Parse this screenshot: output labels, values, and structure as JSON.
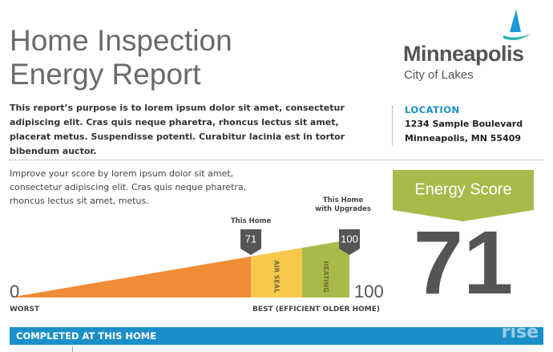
{
  "header": {
    "title_lines": [
      "Home Inspection",
      "Energy Report"
    ],
    "logo_name": "Minneapolis",
    "logo_tagline": "City of Lakes"
  },
  "intro": "This report’s purpose is to lorem ipsum dolor sit amet, consectetur adipiscing elit. Cras quis neque pharetra, rhoncus lectus sit amet, placerat metus. Suspendisse potenti. Curabitur lacinia est in tortor bibendum auctor.",
  "location": {
    "label": "LOCATION",
    "lines": [
      "1234 Sample Boulevard",
      "Minneapolis, MN 55409"
    ]
  },
  "score_section": {
    "description": "Improve your score by lorem ipsum dolor sit amet, consectetur adipiscing elit. Cras quis neque pharetra, rhoncus lectus sit amet, metus.",
    "gauge": {
      "min": 0,
      "max": 100,
      "min_caption": "WORST",
      "max_caption": "BEST (EFFICIENT OLDER HOME)",
      "current_label": "This Home",
      "current": 71,
      "upgraded_label_lines": [
        "This Home",
        "with Upgrades"
      ],
      "upgraded": 100,
      "segments": [
        {
          "label": "AIR SEAL",
          "value": 15
        },
        {
          "label": "HEATING",
          "value": 14
        }
      ]
    },
    "score_title": "Energy Score"
  },
  "footer": {
    "bar_title": "COMPLETED AT THIS HOME",
    "watermark": "rise"
  }
}
